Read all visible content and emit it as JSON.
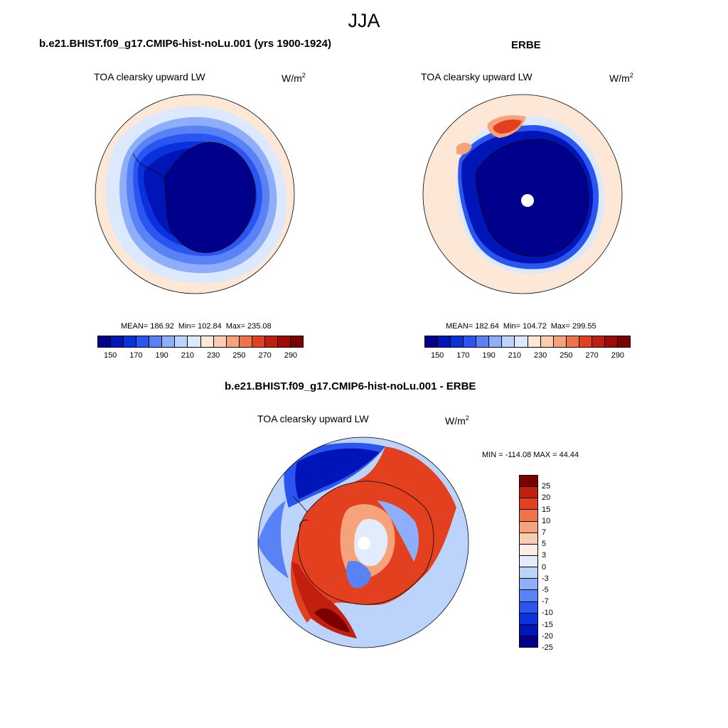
{
  "season": "JJA",
  "colors": {
    "abs_palette": [
      "#00008c",
      "#0015b8",
      "#0a32dc",
      "#2a55f0",
      "#5a82f7",
      "#8eaef9",
      "#bcd3fb",
      "#dce9fc",
      "#fde8d8",
      "#f9cdb0",
      "#f6a37c",
      "#f27248",
      "#e2401e",
      "#c2200e",
      "#a00a06",
      "#7d0000"
    ],
    "diff_palette": [
      "#00008c",
      "#0015b8",
      "#0a32dc",
      "#2a55f0",
      "#5a82f7",
      "#8eaef9",
      "#bcd3fb",
      "#e2ecfc",
      "#fbeee4",
      "#f9cdb0",
      "#f6a37c",
      "#f27248",
      "#e2401e",
      "#c2200e",
      "#7d0000"
    ]
  },
  "panels": [
    {
      "title": "b.e21.BHIST.f09_g17.CMIP6-hist-noLu.001 (yrs 1900-1924)",
      "variable": "TOA clearsky upward LW",
      "units_base": "W/m",
      "units_exp": "2",
      "mean_label": "MEAN= 186.92",
      "min_label": "Min= 102.84",
      "max_label": "Max= 235.08",
      "ticks": [
        "150",
        "170",
        "190",
        "210",
        "230",
        "250",
        "270",
        "290"
      ]
    },
    {
      "title": "ERBE",
      "variable": "TOA clearsky upward LW",
      "units_base": "W/m",
      "units_exp": "2",
      "mean_label": "MEAN= 182.64",
      "min_label": "Min= 104.72",
      "max_label": "Max= 299.55",
      "ticks": [
        "150",
        "170",
        "190",
        "210",
        "230",
        "250",
        "270",
        "290"
      ]
    }
  ],
  "diff": {
    "title": "b.e21.BHIST.f09_g17.CMIP6-hist-noLu.001 - ERBE",
    "variable": "TOA clearsky upward LW",
    "units_base": "W/m",
    "units_exp": "2",
    "minmax": "MIN = -114.08 MAX =  44.44",
    "ticks": [
      "25",
      "20",
      "15",
      "10",
      "7",
      "5",
      "3",
      "0",
      "-3",
      "-5",
      "-7",
      "-10",
      "-15",
      "-20",
      "-25"
    ]
  }
}
